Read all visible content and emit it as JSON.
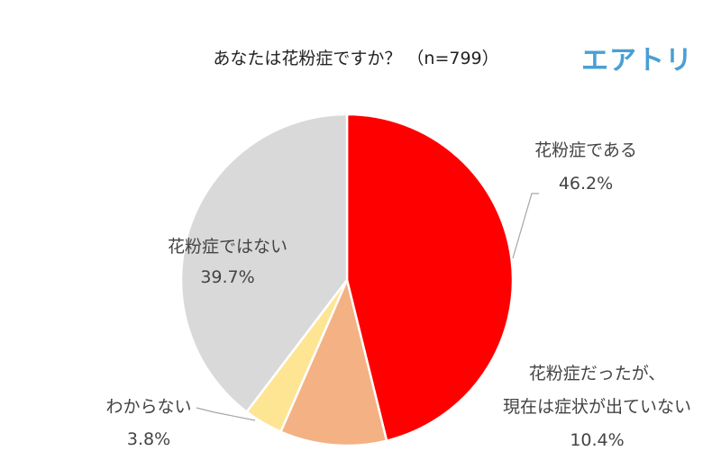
{
  "chart_data": {
    "type": "pie",
    "title": "あなたは花粉症ですか？ （n=799）",
    "slices": [
      {
        "label": "花粉症である",
        "value": 46.2,
        "value_label": "46.2%",
        "color": "#ff0000"
      },
      {
        "label_lines": [
          "花粉症だったが、",
          "現在は症状が出ていない"
        ],
        "value": 10.4,
        "value_label": "10.4%",
        "color": "#f4b183"
      },
      {
        "label": "わからない",
        "value": 3.8,
        "value_label": "3.8%",
        "color": "#fde593"
      },
      {
        "label": "花粉症ではない",
        "value": 39.7,
        "value_label": "39.7%",
        "color": "#d9d9d9"
      }
    ],
    "start": "top",
    "direction": "clockwise",
    "legend": "none"
  },
  "logo": {
    "text": "エアトリ",
    "color": "#4a9fd4"
  }
}
